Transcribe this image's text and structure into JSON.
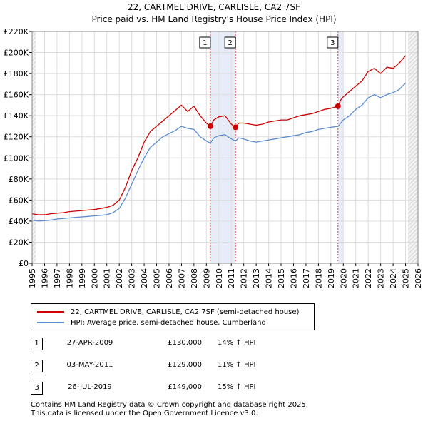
{
  "header": {
    "title": "22, CARTMEL DRIVE, CARLISLE, CA2 7SF",
    "subtitle": "Price paid vs. HM Land Registry's House Price Index (HPI)"
  },
  "legend": {
    "property_label": "22, CARTMEL DRIVE, CARLISLE, CA2 7SF (semi-detached house)",
    "hpi_label": "HPI: Average price, semi-detached house, Cumberland"
  },
  "transactions": [
    {
      "num": "1",
      "date": "27-APR-2009",
      "price": "£130,000",
      "hpi": "14% ↑ HPI"
    },
    {
      "num": "2",
      "date": "03-MAY-2011",
      "price": "£129,000",
      "hpi": "11% ↑ HPI"
    },
    {
      "num": "3",
      "date": "26-JUL-2019",
      "price": "£149,000",
      "hpi": "15% ↑ HPI"
    }
  ],
  "footer": {
    "line1": "Contains HM Land Registry data © Crown copyright and database right 2025.",
    "line2": "This data is licensed under the Open Government Licence v3.0."
  },
  "chart_data": {
    "type": "line",
    "xlim": [
      1995,
      2026
    ],
    "ylim": [
      0,
      220000
    ],
    "x_ticks": [
      1995,
      1996,
      1997,
      1998,
      1999,
      2000,
      2001,
      2002,
      2003,
      2004,
      2005,
      2006,
      2007,
      2008,
      2009,
      2010,
      2011,
      2012,
      2013,
      2014,
      2015,
      2016,
      2017,
      2018,
      2019,
      2020,
      2021,
      2022,
      2023,
      2024,
      2025,
      2026
    ],
    "y_ticks": [
      {
        "value": 0,
        "label": "£0"
      },
      {
        "value": 20000,
        "label": "£20K"
      },
      {
        "value": 40000,
        "label": "£40K"
      },
      {
        "value": 60000,
        "label": "£60K"
      },
      {
        "value": 80000,
        "label": "£80K"
      },
      {
        "value": 100000,
        "label": "£100K"
      },
      {
        "value": 120000,
        "label": "£120K"
      },
      {
        "value": 140000,
        "label": "£140K"
      },
      {
        "value": 160000,
        "label": "£160K"
      },
      {
        "value": 180000,
        "label": "£180K"
      },
      {
        "value": 200000,
        "label": "£200K"
      },
      {
        "value": 220000,
        "label": "£220K"
      }
    ],
    "grid": true,
    "shaded_periods": [
      [
        2009.32,
        2011.34
      ],
      [
        2019.57,
        2020.0
      ]
    ],
    "hatched_regions": [
      [
        1995.0,
        1995.3
      ],
      [
        2025.2,
        2026.0
      ]
    ],
    "series": [
      {
        "name": "22, CARTMEL DRIVE, CARLISLE, CA2 7SF (semi-detached house)",
        "color": "#cc0000",
        "x": [
          1995.0,
          1995.5,
          1996.0,
          1996.5,
          1997.0,
          1997.5,
          1998.0,
          1998.5,
          1999.0,
          1999.5,
          2000.0,
          2000.5,
          2001.0,
          2001.5,
          2002.0,
          2002.5,
          2003.0,
          2003.5,
          2004.0,
          2004.5,
          2005.0,
          2005.5,
          2006.0,
          2006.5,
          2007.0,
          2007.5,
          2008.0,
          2008.5,
          2009.0,
          2009.32,
          2009.6,
          2010.0,
          2010.5,
          2011.0,
          2011.34,
          2011.6,
          2012.0,
          2012.5,
          2013.0,
          2013.5,
          2014.0,
          2014.5,
          2015.0,
          2015.5,
          2016.0,
          2016.5,
          2017.0,
          2017.5,
          2018.0,
          2018.5,
          2019.0,
          2019.57,
          2019.8,
          2020.0,
          2020.5,
          2021.0,
          2021.5,
          2022.0,
          2022.5,
          2023.0,
          2023.5,
          2024.0,
          2024.5,
          2025.0
        ],
        "y": [
          47000,
          46000,
          46000,
          47000,
          47500,
          48000,
          49000,
          49500,
          50000,
          50500,
          51000,
          52000,
          53000,
          55000,
          60000,
          72000,
          88000,
          100000,
          115000,
          125000,
          130000,
          135000,
          140000,
          145000,
          150000,
          144000,
          149000,
          140000,
          133000,
          130000,
          136000,
          139000,
          140000,
          132000,
          129000,
          133000,
          133000,
          132000,
          131000,
          132000,
          134000,
          135000,
          136000,
          136000,
          138000,
          140000,
          141000,
          142000,
          144000,
          146000,
          147000,
          149000,
          155000,
          158000,
          163000,
          168000,
          173000,
          182000,
          185000,
          180000,
          186000,
          185000,
          190000,
          197000
        ]
      },
      {
        "name": "HPI: Average price, semi-detached house, Cumberland",
        "color": "#5b8ccf",
        "x": [
          1995.0,
          1995.5,
          1996.0,
          1996.5,
          1997.0,
          1997.5,
          1998.0,
          1998.5,
          1999.0,
          1999.5,
          2000.0,
          2000.5,
          2001.0,
          2001.5,
          2002.0,
          2002.5,
          2003.0,
          2003.5,
          2004.0,
          2004.5,
          2005.0,
          2005.5,
          2006.0,
          2006.5,
          2007.0,
          2007.5,
          2008.0,
          2008.5,
          2009.0,
          2009.32,
          2009.6,
          2010.0,
          2010.5,
          2011.0,
          2011.34,
          2011.6,
          2012.0,
          2012.5,
          2013.0,
          2013.5,
          2014.0,
          2014.5,
          2015.0,
          2015.5,
          2016.0,
          2016.5,
          2017.0,
          2017.5,
          2018.0,
          2018.5,
          2019.0,
          2019.57,
          2019.8,
          2020.0,
          2020.5,
          2021.0,
          2021.5,
          2022.0,
          2022.5,
          2023.0,
          2023.5,
          2024.0,
          2024.5,
          2025.0
        ],
        "y": [
          41000,
          40000,
          40500,
          41000,
          42000,
          42500,
          43000,
          43500,
          44000,
          44500,
          45000,
          45500,
          46000,
          48000,
          52000,
          62000,
          75000,
          88000,
          100000,
          110000,
          115000,
          120000,
          123000,
          126000,
          130000,
          128000,
          127000,
          120000,
          116000,
          114000,
          119000,
          121000,
          122000,
          118000,
          116000,
          119000,
          118000,
          116000,
          115000,
          116000,
          117000,
          118000,
          119000,
          120000,
          121000,
          122000,
          124000,
          125000,
          127000,
          128000,
          129000,
          130000,
          133000,
          136000,
          140000,
          146000,
          150000,
          157000,
          160000,
          157000,
          160000,
          162000,
          165000,
          171000
        ]
      }
    ],
    "sales": [
      {
        "label": "1",
        "x": 2009.32,
        "y": 130000
      },
      {
        "label": "2",
        "x": 2011.34,
        "y": 129000
      },
      {
        "label": "3",
        "x": 2019.57,
        "y": 149000
      }
    ]
  }
}
